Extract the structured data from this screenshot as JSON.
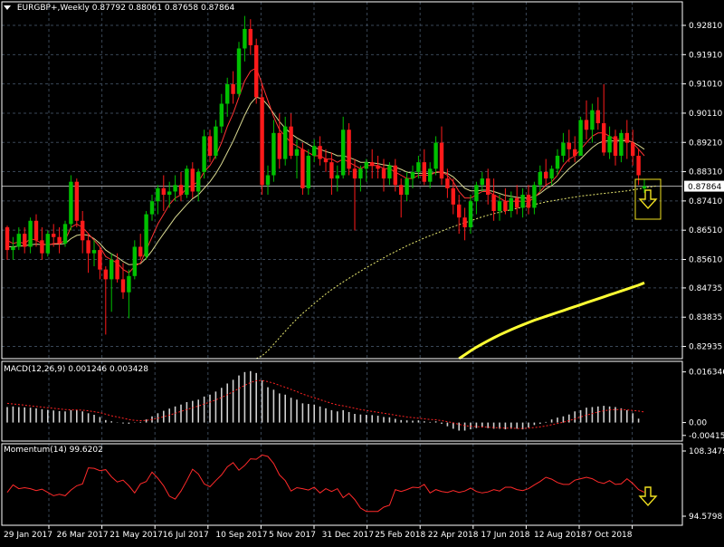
{
  "colors": {
    "background": "#000000",
    "grid": "#3a4757",
    "axis": "#ffffff",
    "bull_candle": "#00c000",
    "bear_candle": "#ff1a1a",
    "ma_fast": "#ff3333",
    "ma_slow": "#d8d890",
    "ma_dotted": "#e8e870",
    "ma_long": "#ffff33",
    "macd_hist": "#d0d0d0",
    "macd_signal": "#ff2222",
    "momentum": "#ff2a2a",
    "annotation": "#f0e020",
    "price_line": "#b0b0b0"
  },
  "main": {
    "symbol_label": "EURGBP+,Weekly",
    "ohlc_label": "0.87792 0.88061 0.87658 0.87864",
    "current_price": "0.87864",
    "price_ticks": [
      "0.92810",
      "0.91910",
      "0.91010",
      "0.90110",
      "0.89210",
      "0.88310",
      "0.87410",
      "0.86510",
      "0.85610",
      "0.84735",
      "0.83835",
      "0.82935"
    ]
  },
  "macd": {
    "label": "MACD(12,26,9) 0.001246 0.003428",
    "ticks": [
      "0.016346",
      "0.00",
      "-0.004156"
    ]
  },
  "momentum": {
    "label": "Momentum(14) 99.6202",
    "ticks": [
      "108.3479",
      "94.5798"
    ]
  },
  "time_axis": {
    "labels": [
      "29 Jan 2017",
      "26 Mar 2017",
      "21 May 2017",
      "16 Jul 2017",
      "10 Sep 2017",
      "5 Nov 2017",
      "31 Dec 2017",
      "25 Feb 2018",
      "22 Apr 2018",
      "17 Jun 2018",
      "12 Aug 2018",
      "7 Oct 2018"
    ]
  },
  "chart_data": {
    "type": "candlestick",
    "symbol": "EURGBP+",
    "timeframe": "Weekly",
    "ylim": [
      0.8256,
      0.932
    ],
    "candles": [
      [
        0.866,
        0.8665,
        0.856,
        0.859
      ],
      [
        0.859,
        0.863,
        0.856,
        0.86
      ],
      [
        0.86,
        0.866,
        0.859,
        0.864
      ],
      [
        0.864,
        0.866,
        0.858,
        0.86
      ],
      [
        0.86,
        0.869,
        0.858,
        0.868
      ],
      [
        0.868,
        0.87,
        0.86,
        0.862
      ],
      [
        0.862,
        0.866,
        0.856,
        0.858
      ],
      [
        0.858,
        0.865,
        0.857,
        0.864
      ],
      [
        0.864,
        0.867,
        0.86,
        0.863
      ],
      [
        0.863,
        0.866,
        0.858,
        0.861
      ],
      [
        0.861,
        0.868,
        0.86,
        0.867
      ],
      [
        0.867,
        0.882,
        0.865,
        0.88
      ],
      [
        0.88,
        0.881,
        0.866,
        0.868
      ],
      [
        0.868,
        0.871,
        0.858,
        0.862
      ],
      [
        0.862,
        0.864,
        0.852,
        0.858
      ],
      [
        0.858,
        0.862,
        0.854,
        0.859
      ],
      [
        0.859,
        0.86,
        0.85,
        0.853
      ],
      [
        0.853,
        0.854,
        0.833,
        0.85
      ],
      [
        0.85,
        0.858,
        0.84,
        0.856
      ],
      [
        0.856,
        0.858,
        0.849,
        0.85
      ],
      [
        0.85,
        0.855,
        0.844,
        0.846
      ],
      [
        0.846,
        0.853,
        0.838,
        0.851
      ],
      [
        0.851,
        0.862,
        0.85,
        0.86
      ],
      [
        0.86,
        0.864,
        0.856,
        0.857
      ],
      [
        0.857,
        0.871,
        0.856,
        0.87
      ],
      [
        0.87,
        0.876,
        0.868,
        0.874
      ],
      [
        0.874,
        0.879,
        0.87,
        0.878
      ],
      [
        0.878,
        0.882,
        0.871,
        0.876
      ],
      [
        0.876,
        0.88,
        0.872,
        0.877
      ],
      [
        0.877,
        0.882,
        0.874,
        0.879
      ],
      [
        0.879,
        0.883,
        0.874,
        0.876
      ],
      [
        0.876,
        0.885,
        0.875,
        0.884
      ],
      [
        0.884,
        0.886,
        0.875,
        0.877
      ],
      [
        0.877,
        0.884,
        0.874,
        0.883
      ],
      [
        0.883,
        0.896,
        0.881,
        0.894
      ],
      [
        0.894,
        0.896,
        0.886,
        0.888
      ],
      [
        0.888,
        0.899,
        0.887,
        0.897
      ],
      [
        0.897,
        0.907,
        0.895,
        0.904
      ],
      [
        0.904,
        0.912,
        0.9,
        0.91
      ],
      [
        0.91,
        0.914,
        0.904,
        0.907
      ],
      [
        0.907,
        0.923,
        0.906,
        0.921
      ],
      [
        0.921,
        0.931,
        0.917,
        0.927
      ],
      [
        0.927,
        0.93,
        0.919,
        0.922
      ],
      [
        0.922,
        0.924,
        0.904,
        0.906
      ],
      [
        0.906,
        0.91,
        0.876,
        0.879
      ],
      [
        0.879,
        0.885,
        0.876,
        0.882
      ],
      [
        0.882,
        0.899,
        0.88,
        0.895
      ],
      [
        0.895,
        0.901,
        0.884,
        0.887
      ],
      [
        0.887,
        0.9,
        0.885,
        0.897
      ],
      [
        0.897,
        0.901,
        0.887,
        0.888
      ],
      [
        0.888,
        0.893,
        0.881,
        0.89
      ],
      [
        0.89,
        0.892,
        0.876,
        0.878
      ],
      [
        0.878,
        0.89,
        0.876,
        0.888
      ],
      [
        0.888,
        0.893,
        0.886,
        0.891
      ],
      [
        0.891,
        0.894,
        0.885,
        0.887
      ],
      [
        0.887,
        0.89,
        0.883,
        0.886
      ],
      [
        0.886,
        0.889,
        0.876,
        0.881
      ],
      [
        0.881,
        0.885,
        0.877,
        0.882
      ],
      [
        0.882,
        0.9,
        0.881,
        0.896
      ],
      [
        0.896,
        0.898,
        0.882,
        0.884
      ],
      [
        0.884,
        0.887,
        0.865,
        0.881
      ],
      [
        0.881,
        0.885,
        0.877,
        0.884
      ],
      [
        0.884,
        0.887,
        0.88,
        0.886
      ],
      [
        0.886,
        0.89,
        0.881,
        0.885
      ],
      [
        0.885,
        0.888,
        0.881,
        0.884
      ],
      [
        0.884,
        0.887,
        0.877,
        0.881
      ],
      [
        0.881,
        0.886,
        0.879,
        0.885
      ],
      [
        0.885,
        0.887,
        0.877,
        0.879
      ],
      [
        0.879,
        0.881,
        0.869,
        0.876
      ],
      [
        0.876,
        0.883,
        0.874,
        0.881
      ],
      [
        0.881,
        0.885,
        0.878,
        0.883
      ],
      [
        0.883,
        0.888,
        0.881,
        0.886
      ],
      [
        0.886,
        0.89,
        0.879,
        0.88
      ],
      [
        0.88,
        0.886,
        0.878,
        0.884
      ],
      [
        0.884,
        0.894,
        0.882,
        0.892
      ],
      [
        0.892,
        0.897,
        0.879,
        0.881
      ],
      [
        0.881,
        0.884,
        0.875,
        0.878
      ],
      [
        0.878,
        0.881,
        0.87,
        0.873
      ],
      [
        0.873,
        0.876,
        0.864,
        0.869
      ],
      [
        0.869,
        0.872,
        0.862,
        0.866
      ],
      [
        0.866,
        0.876,
        0.864,
        0.874
      ],
      [
        0.874,
        0.88,
        0.87,
        0.879
      ],
      [
        0.879,
        0.883,
        0.877,
        0.881
      ],
      [
        0.881,
        0.884,
        0.873,
        0.876
      ],
      [
        0.876,
        0.881,
        0.868,
        0.871
      ],
      [
        0.871,
        0.876,
        0.868,
        0.874
      ],
      [
        0.874,
        0.878,
        0.87,
        0.871
      ],
      [
        0.871,
        0.877,
        0.869,
        0.875
      ],
      [
        0.875,
        0.879,
        0.87,
        0.872
      ],
      [
        0.872,
        0.878,
        0.869,
        0.876
      ],
      [
        0.876,
        0.879,
        0.87,
        0.872
      ],
      [
        0.872,
        0.88,
        0.87,
        0.879
      ],
      [
        0.879,
        0.885,
        0.877,
        0.883
      ],
      [
        0.883,
        0.887,
        0.879,
        0.881
      ],
      [
        0.881,
        0.885,
        0.879,
        0.884
      ],
      [
        0.884,
        0.89,
        0.882,
        0.888
      ],
      [
        0.888,
        0.895,
        0.886,
        0.892
      ],
      [
        0.892,
        0.896,
        0.886,
        0.89
      ],
      [
        0.89,
        0.894,
        0.886,
        0.888
      ],
      [
        0.888,
        0.9,
        0.888,
        0.899
      ],
      [
        0.899,
        0.905,
        0.893,
        0.896
      ],
      [
        0.896,
        0.904,
        0.892,
        0.902
      ],
      [
        0.902,
        0.906,
        0.896,
        0.898
      ],
      [
        0.898,
        0.91,
        0.888,
        0.889
      ],
      [
        0.889,
        0.897,
        0.887,
        0.894
      ],
      [
        0.894,
        0.896,
        0.885,
        0.888
      ],
      [
        0.888,
        0.896,
        0.886,
        0.895
      ],
      [
        0.895,
        0.899,
        0.887,
        0.892
      ],
      [
        0.892,
        0.896,
        0.885,
        0.888
      ],
      [
        0.888,
        0.89,
        0.879,
        0.882
      ],
      [
        0.87792,
        0.88061,
        0.87658,
        0.87864
      ]
    ],
    "ma_fast": [
      0.862,
      0.861,
      0.8615,
      0.861,
      0.8625,
      0.862,
      0.861,
      0.8605,
      0.861,
      0.861,
      0.862,
      0.866,
      0.867,
      0.866,
      0.864,
      0.862,
      0.86,
      0.857,
      0.856,
      0.855,
      0.853,
      0.852,
      0.854,
      0.855,
      0.859,
      0.863,
      0.867,
      0.87,
      0.873,
      0.875,
      0.876,
      0.878,
      0.879,
      0.88,
      0.883,
      0.885,
      0.888,
      0.892,
      0.897,
      0.901,
      0.906,
      0.911,
      0.914,
      0.915,
      0.91,
      0.905,
      0.9,
      0.896,
      0.894,
      0.892,
      0.891,
      0.89,
      0.889,
      0.888,
      0.888,
      0.887,
      0.887,
      0.886,
      0.887,
      0.886,
      0.885,
      0.884,
      0.885,
      0.885,
      0.885,
      0.884,
      0.884,
      0.883,
      0.882,
      0.881,
      0.881,
      0.882,
      0.882,
      0.882,
      0.883,
      0.883,
      0.882,
      0.88,
      0.877,
      0.875,
      0.875,
      0.876,
      0.877,
      0.877,
      0.876,
      0.875,
      0.874,
      0.874,
      0.874,
      0.874,
      0.874,
      0.875,
      0.877,
      0.879,
      0.88,
      0.882,
      0.885,
      0.887,
      0.888,
      0.89,
      0.892,
      0.894,
      0.895,
      0.895,
      0.894,
      0.893,
      0.893,
      0.893,
      0.892,
      0.89,
      0.888
    ],
    "ma_slow": [
      0.86,
      0.86,
      0.8602,
      0.8603,
      0.8606,
      0.8608,
      0.8607,
      0.8607,
      0.8608,
      0.8608,
      0.861,
      0.8625,
      0.8635,
      0.8638,
      0.8635,
      0.8625,
      0.861,
      0.859,
      0.8578,
      0.8568,
      0.8555,
      0.8545,
      0.8546,
      0.8548,
      0.8565,
      0.8588,
      0.8615,
      0.864,
      0.8665,
      0.869,
      0.871,
      0.873,
      0.8748,
      0.876,
      0.878,
      0.88,
      0.8825,
      0.8855,
      0.889,
      0.8925,
      0.8965,
      0.9005,
      0.904,
      0.906,
      0.9055,
      0.9035,
      0.901,
      0.8985,
      0.8965,
      0.8948,
      0.8935,
      0.8925,
      0.8915,
      0.8905,
      0.89,
      0.8893,
      0.8888,
      0.888,
      0.888,
      0.8875,
      0.8868,
      0.886,
      0.886,
      0.8858,
      0.8856,
      0.8852,
      0.885,
      0.8845,
      0.8838,
      0.883,
      0.8826,
      0.8826,
      0.8826,
      0.8826,
      0.8828,
      0.883,
      0.8826,
      0.8815,
      0.8798,
      0.878,
      0.8772,
      0.8772,
      0.8774,
      0.8774,
      0.877,
      0.8764,
      0.8758,
      0.8755,
      0.8752,
      0.875,
      0.875,
      0.8754,
      0.8764,
      0.8778,
      0.8788,
      0.8802,
      0.8822,
      0.884,
      0.8855,
      0.887,
      0.8888,
      0.8905,
      0.8918,
      0.8925,
      0.8926,
      0.8925,
      0.8926,
      0.8926,
      0.8922,
      0.8912,
      0.89
    ],
    "ma_dotted_start": 43,
    "ma_dotted": [
      0.8256,
      0.8265,
      0.828,
      0.83,
      0.832,
      0.834,
      0.836,
      0.8378,
      0.8395,
      0.841,
      0.8425,
      0.844,
      0.8455,
      0.8468,
      0.848,
      0.8492,
      0.8503,
      0.8514,
      0.8525,
      0.8536,
      0.8546,
      0.8556,
      0.8566,
      0.8576,
      0.8585,
      0.8594,
      0.8603,
      0.8611,
      0.8619,
      0.8627,
      0.8634,
      0.8641,
      0.8648,
      0.8655,
      0.8662,
      0.8668,
      0.8674,
      0.868,
      0.8686,
      0.8692,
      0.8697,
      0.8702,
      0.8706,
      0.871,
      0.8714,
      0.8718,
      0.8722,
      0.8726,
      0.873,
      0.8734,
      0.8738,
      0.8741,
      0.8744,
      0.8747,
      0.875,
      0.8753,
      0.8756,
      0.8758,
      0.876,
      0.8762,
      0.8764,
      0.8766,
      0.8768,
      0.877,
      0.8772,
      0.8775,
      0.8778,
      0.8781,
      0.8784,
      0.8787
    ],
    "ma_long_start": 78,
    "ma_long": [
      0.8256,
      0.8268,
      0.828,
      0.8291,
      0.8301,
      0.8311,
      0.832,
      0.8329,
      0.8337,
      0.8345,
      0.8353,
      0.836,
      0.8367,
      0.8374,
      0.838,
      0.8386,
      0.8392,
      0.8398,
      0.8404,
      0.841,
      0.8416,
      0.8422,
      0.8428,
      0.8434,
      0.844,
      0.8446,
      0.8452,
      0.8458,
      0.8464,
      0.847,
      0.8476,
      0.8482,
      0.8489
    ],
    "macd": {
      "ylim": [
        -0.0048,
        0.018
      ],
      "histogram": [
        0.005,
        0.0052,
        0.005,
        0.0049,
        0.0048,
        0.0046,
        0.0043,
        0.0041,
        0.0039,
        0.0037,
        0.0036,
        0.004,
        0.004,
        0.0036,
        0.003,
        0.0025,
        0.0018,
        0.0008,
        0.0004,
        0.0001,
        -0.0003,
        -0.0004,
        -0.0001,
        0.0002,
        0.001,
        0.002,
        0.003,
        0.0038,
        0.0045,
        0.0052,
        0.0058,
        0.0066,
        0.007,
        0.0074,
        0.0084,
        0.009,
        0.01,
        0.0112,
        0.0126,
        0.0138,
        0.0152,
        0.0163,
        0.0166,
        0.016,
        0.0136,
        0.0114,
        0.0106,
        0.0094,
        0.009,
        0.008,
        0.0074,
        0.0062,
        0.006,
        0.0058,
        0.0052,
        0.0046,
        0.004,
        0.0036,
        0.004,
        0.0034,
        0.0028,
        0.0026,
        0.0025,
        0.0024,
        0.0022,
        0.0018,
        0.0017,
        0.0012,
        0.0008,
        0.0007,
        0.0006,
        0.0007,
        0.0004,
        0.0002,
        0.0004,
        -0.0004,
        -0.0012,
        -0.002,
        -0.0026,
        -0.0026,
        -0.0022,
        -0.0018,
        -0.0016,
        -0.0018,
        -0.002,
        -0.002,
        -0.0022,
        -0.002,
        -0.002,
        -0.0022,
        -0.0016,
        -0.0008,
        -0.0004,
        0.0002,
        0.001,
        0.0016,
        0.002,
        0.0026,
        0.0036,
        0.004,
        0.0048,
        0.005,
        0.0052,
        0.0054,
        0.0052,
        0.005,
        0.0046,
        0.004,
        0.003,
        0.00125
      ],
      "signal": [
        0.0062,
        0.006,
        0.0058,
        0.0056,
        0.0054,
        0.0052,
        0.005,
        0.0048,
        0.0046,
        0.0044,
        0.0042,
        0.0041,
        0.0041,
        0.004,
        0.0038,
        0.0035,
        0.0032,
        0.0027,
        0.0022,
        0.0018,
        0.0014,
        0.001,
        0.0007,
        0.0006,
        0.0007,
        0.001,
        0.0014,
        0.0019,
        0.0024,
        0.003,
        0.0036,
        0.0042,
        0.0048,
        0.0053,
        0.006,
        0.0066,
        0.0073,
        0.0081,
        0.009,
        0.01,
        0.011,
        0.012,
        0.0129,
        0.0135,
        0.0136,
        0.0132,
        0.0127,
        0.012,
        0.0114,
        0.0107,
        0.01,
        0.0092,
        0.0086,
        0.008,
        0.0074,
        0.0068,
        0.0062,
        0.0057,
        0.0054,
        0.005,
        0.0046,
        0.0042,
        0.0039,
        0.0036,
        0.0033,
        0.003,
        0.0027,
        0.0024,
        0.0021,
        0.0018,
        0.0016,
        0.0014,
        0.0012,
        0.001,
        0.0009,
        0.0006,
        0.0003,
        -0.0001,
        -0.0006,
        -0.001,
        -0.0012,
        -0.0013,
        -0.0014,
        -0.0015,
        -0.0016,
        -0.0017,
        -0.0018,
        -0.0018,
        -0.0019,
        -0.0019,
        -0.0018,
        -0.0016,
        -0.0014,
        -0.0011,
        -0.0007,
        -0.0003,
        0.0001,
        0.0006,
        0.0012,
        0.0018,
        0.0024,
        0.0029,
        0.0034,
        0.0038,
        0.0041,
        0.0042,
        0.0042,
        0.0041,
        0.0039,
        0.0037,
        0.0034
      ]
    },
    "momentum": {
      "ylim": [
        94.5798,
        108.3479
      ],
      "values": [
        99.6,
        101.2,
        100.4,
        100.6,
        100.4,
        100.0,
        100.3,
        99.6,
        98.9,
        99.2,
        98.9,
        100.1,
        101.0,
        101.4,
        104.8,
        104.7,
        104.2,
        104.4,
        102.9,
        101.8,
        102.2,
        101.0,
        99.5,
        101.4,
        101.9,
        103.9,
        102.6,
        101.0,
        98.8,
        98.2,
        99.9,
        102.1,
        104.5,
        103.5,
        101.4,
        100.8,
        102.1,
        103.3,
        105.0,
        105.9,
        104.3,
        105.3,
        106.7,
        106.6,
        107.5,
        107.2,
        105.7,
        103.3,
        102.1,
        99.9,
        100.6,
        100.4,
        100.1,
        100.7,
        99.5,
        100.4,
        99.8,
        100.4,
        98.5,
        99.4,
        98.1,
        96.3,
        95.6,
        95.6,
        95.6,
        96.5,
        96.9,
        100.2,
        99.8,
        100.2,
        100.7,
        100.6,
        101.3,
        99.5,
        100.2,
        99.8,
        99.6,
        100.0,
        99.6,
        99.9,
        100.5,
        99.8,
        99.5,
        99.7,
        100.2,
        99.9,
        100.7,
        100.7,
        100.2,
        100.0,
        100.4,
        101.2,
        101.9,
        102.8,
        102.4,
        101.7,
        101.3,
        101.3,
        102.2,
        102.5,
        102.8,
        102.5,
        101.8,
        101.5,
        102.1,
        101.3,
        101.4,
        102.5,
        101.5,
        100.2,
        99.62
      ]
    },
    "annotation": {
      "type": "down-arrows",
      "note_hidden": true
    }
  }
}
